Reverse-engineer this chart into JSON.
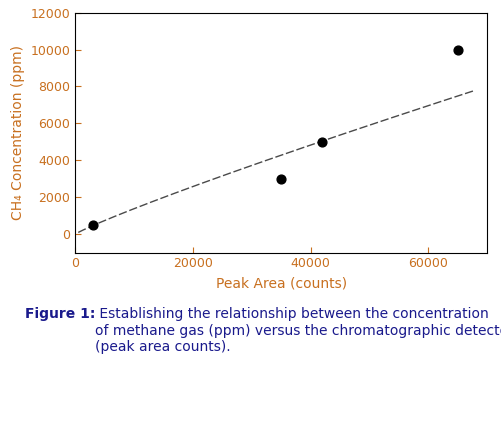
{
  "data_points_x": [
    3000,
    35000,
    42000,
    65000
  ],
  "data_points_y": [
    500,
    3000,
    5000,
    10000
  ],
  "xlim": [
    0,
    70000
  ],
  "ylim": [
    -1000,
    12000
  ],
  "xticks": [
    0,
    20000,
    40000,
    60000
  ],
  "yticks": [
    0,
    2000,
    4000,
    6000,
    8000,
    10000,
    12000
  ],
  "xlabel": "Peak Area (counts)",
  "ylabel": "CH₄ Concentration (ppm)",
  "curve_color": "#4a4a4a",
  "point_color": "#000000",
  "point_size": 40,
  "caption_bold": "Figure 1:",
  "caption_normal": " Establishing the relationship between the concentration of methane gas (ppm) versus the chromatographic detector response (peak area counts).",
  "bg_color": "#ffffff",
  "spine_color": "#000000",
  "axis_label_color": "#c87020",
  "tick_label_color": "#c87020",
  "tick_label_fontsize": 9,
  "axis_label_fontsize": 10,
  "caption_fontsize": 10,
  "caption_bold_color": "#1a1a8c",
  "caption_normal_color": "#1a1a8c"
}
